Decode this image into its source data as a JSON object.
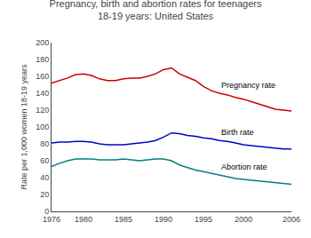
{
  "chart_data": {
    "type": "line",
    "title": "Pregnancy, birth and abortion rates for teenagers",
    "subtitle": "18-19 years: United States",
    "ylabel": "Rate per 1,000 women 18-19 years",
    "x": [
      1976,
      1977,
      1978,
      1979,
      1980,
      1981,
      1982,
      1983,
      1984,
      1985,
      1986,
      1987,
      1988,
      1989,
      1990,
      1991,
      1992,
      1993,
      1994,
      1995,
      1996,
      1997,
      1998,
      1999,
      2000,
      2001,
      2002,
      2003,
      2004,
      2005,
      2006
    ],
    "series": [
      {
        "name": "Pregnancy rate",
        "color": "#cc0000",
        "values": [
          152,
          155,
          158,
          162,
          163,
          161,
          157,
          155,
          155,
          157,
          158,
          158,
          160,
          163,
          168,
          170,
          163,
          159,
          155,
          148,
          143,
          140,
          138,
          135,
          133,
          130,
          127,
          124,
          121,
          120,
          119
        ]
      },
      {
        "name": "Birth rate",
        "color": "#0000cc",
        "values": [
          81,
          82,
          82,
          83,
          83,
          82,
          80,
          79,
          79,
          79,
          80,
          81,
          82,
          84,
          88,
          93,
          92,
          90,
          89,
          87,
          86,
          84,
          83,
          81,
          79,
          78,
          77,
          76,
          75,
          74,
          74
        ]
      },
      {
        "name": "Abortion rate",
        "color": "#008080",
        "values": [
          53,
          57,
          60,
          62,
          62,
          62,
          61,
          61,
          61,
          62,
          61,
          60,
          61,
          62,
          62,
          60,
          55,
          52,
          49,
          47,
          45,
          43,
          41,
          39,
          38,
          37,
          36,
          35,
          34,
          33,
          32
        ]
      }
    ],
    "xlim": [
      1976,
      2006
    ],
    "xticks": [
      1976,
      1980,
      1985,
      1990,
      1995,
      2000,
      2006
    ],
    "ylim": [
      0,
      200
    ],
    "yticks": [
      0,
      20,
      40,
      60,
      80,
      100,
      120,
      140,
      160,
      180,
      200
    ],
    "grid": false
  }
}
